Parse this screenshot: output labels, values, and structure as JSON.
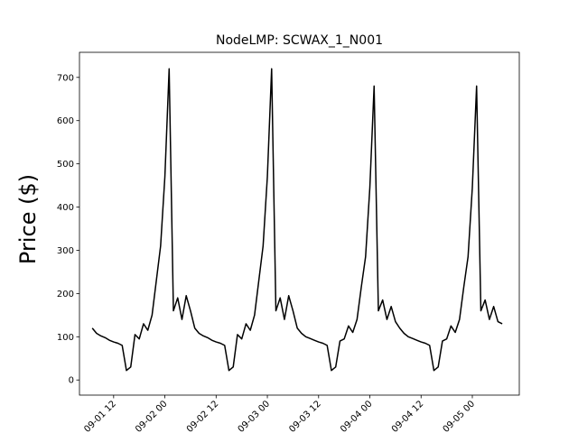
{
  "chart_data": {
    "type": "line",
    "title": "NodeLMP: SCWAX_1_N001",
    "y_label": "Price ($)",
    "color": "#000000",
    "x": [
      "09-01 07",
      "09-01 08",
      "09-01 09",
      "09-01 10",
      "09-01 11",
      "09-01 12",
      "09-01 13",
      "09-01 14",
      "09-01 15",
      "09-01 16",
      "09-01 17",
      "09-01 18",
      "09-01 19",
      "09-01 20",
      "09-01 21",
      "09-01 22",
      "09-01 23",
      "09-02 00",
      "09-02 01",
      "09-02 02",
      "09-02 03",
      "09-02 04",
      "09-02 05",
      "09-02 06",
      "09-02 07",
      "09-02 08",
      "09-02 09",
      "09-02 10",
      "09-02 11",
      "09-02 12",
      "09-02 13",
      "09-02 14",
      "09-02 15",
      "09-02 16",
      "09-02 17",
      "09-02 18",
      "09-02 19",
      "09-02 20",
      "09-02 21",
      "09-02 22",
      "09-02 23",
      "09-03 00",
      "09-03 01",
      "09-03 02",
      "09-03 03",
      "09-03 04",
      "09-03 05",
      "09-03 06",
      "09-03 07",
      "09-03 08",
      "09-03 09",
      "09-03 10",
      "09-03 11",
      "09-03 12",
      "09-03 13",
      "09-03 14",
      "09-03 15",
      "09-03 16",
      "09-03 17",
      "09-03 18",
      "09-03 19",
      "09-03 20",
      "09-03 21",
      "09-03 22",
      "09-03 23",
      "09-04 00",
      "09-04 01",
      "09-04 02",
      "09-04 03",
      "09-04 04",
      "09-04 05",
      "09-04 06",
      "09-04 07",
      "09-04 08",
      "09-04 09",
      "09-04 10",
      "09-04 11",
      "09-04 12",
      "09-04 13",
      "09-04 14",
      "09-04 15",
      "09-04 16",
      "09-04 17",
      "09-04 18",
      "09-04 19",
      "09-04 20",
      "09-04 21",
      "09-04 22",
      "09-04 23",
      "09-05 00",
      "09-05 01",
      "09-05 02",
      "09-05 03",
      "09-05 04",
      "09-05 05",
      "09-05 06",
      "09-05 07"
    ],
    "values": [
      120,
      108,
      102,
      98,
      92,
      88,
      85,
      80,
      22,
      30,
      105,
      95,
      130,
      115,
      150,
      230,
      310,
      470,
      720,
      160,
      190,
      140,
      195,
      160,
      120,
      108,
      102,
      98,
      92,
      88,
      85,
      80,
      22,
      30,
      105,
      95,
      130,
      115,
      150,
      230,
      310,
      470,
      720,
      160,
      190,
      140,
      195,
      160,
      120,
      108,
      100,
      96,
      92,
      88,
      85,
      80,
      22,
      30,
      90,
      95,
      125,
      110,
      140,
      215,
      285,
      445,
      680,
      160,
      185,
      140,
      170,
      135,
      120,
      108,
      100,
      96,
      92,
      88,
      85,
      80,
      22,
      30,
      90,
      95,
      125,
      110,
      140,
      215,
      285,
      445,
      680,
      160,
      185,
      140,
      170,
      135,
      130
    ],
    "xlim": [
      "09-01 04",
      "09-05 11"
    ],
    "xticks": [
      "09-01 12",
      "09-02 00",
      "09-02 12",
      "09-03 00",
      "09-03 12",
      "09-04 00",
      "09-04 12",
      "09-05 00"
    ],
    "ylim": [
      -35,
      758
    ],
    "yticks": [
      0,
      100,
      200,
      300,
      400,
      500,
      600,
      700
    ]
  }
}
